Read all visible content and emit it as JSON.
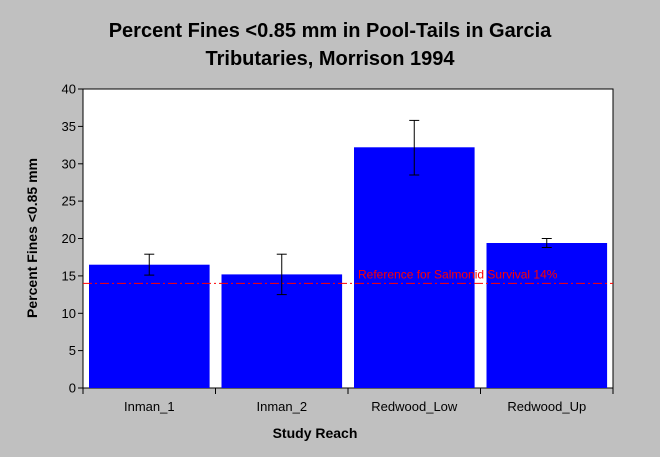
{
  "chart_data": {
    "type": "bar",
    "title_lines": [
      "Percent Fines <0.85 mm in Pool-Tails in Garcia",
      "Tributaries, Morrison 1994"
    ],
    "xlabel": "Study Reach",
    "ylabel": "Percent Fines <0.85 mm",
    "categories": [
      "Inman_1",
      "Inman_2",
      "Redwood_Low",
      "Redwood_Up"
    ],
    "values": [
      16.5,
      15.2,
      32.2,
      19.4
    ],
    "error_low": [
      15.1,
      12.5,
      28.5,
      18.8
    ],
    "error_high": [
      17.9,
      17.9,
      35.8,
      20.0
    ],
    "ylim": [
      0,
      40
    ],
    "yticks": [
      0,
      5,
      10,
      15,
      20,
      25,
      30,
      35,
      40
    ],
    "reference_line": {
      "value": 14,
      "label": "Reference for Salmonid Survival 14%",
      "color": "#ff0000"
    },
    "bar_color": "#0000ff",
    "plot_background": "#ffffff",
    "frame_background": "#c0c0c0",
    "grid": false,
    "legend": "none"
  }
}
